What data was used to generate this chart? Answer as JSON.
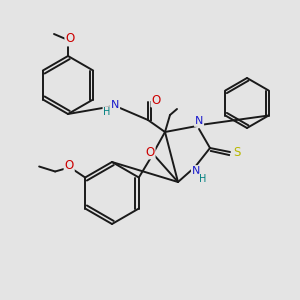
{
  "background_color": "#e4e4e4",
  "bond_color": "#1a1a1a",
  "atom_colors": {
    "O": "#cc0000",
    "N": "#1a1acc",
    "S": "#b8b800",
    "H": "#008080",
    "C": "#1a1a1a"
  },
  "fig_size": [
    3.0,
    3.0
  ],
  "dpi": 100
}
